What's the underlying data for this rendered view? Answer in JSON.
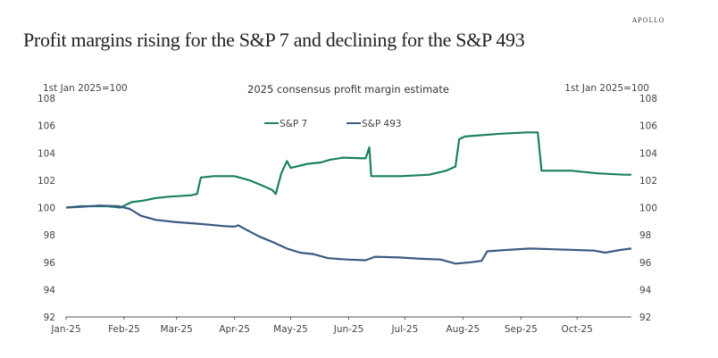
{
  "brand": "APOLLO",
  "title": "Profit margins rising for the S&P 7 and declining for the S&P 493",
  "chart_data": {
    "type": "line",
    "title": "2025 consensus profit margin estimate",
    "ylabel_left": "1st Jan 2025=100",
    "ylabel_right": "1st Jan 2025=100",
    "xlabel": "",
    "ylim": [
      92,
      108
    ],
    "yticks": [
      92,
      94,
      96,
      98,
      100,
      102,
      104,
      106,
      108
    ],
    "xlim_days": [
      0,
      302
    ],
    "xticks": [
      {
        "label": "Jan-25",
        "day": 0
      },
      {
        "label": "Feb-25",
        "day": 31
      },
      {
        "label": "Mar-25",
        "day": 59
      },
      {
        "label": "Apr-25",
        "day": 90
      },
      {
        "label": "May-25",
        "day": 120
      },
      {
        "label": "Jun-25",
        "day": 151
      },
      {
        "label": "Jul-25",
        "day": 181
      },
      {
        "label": "Aug-25",
        "day": 212
      },
      {
        "label": "Sep-25",
        "day": 243
      },
      {
        "label": "Oct-25",
        "day": 273
      }
    ],
    "legend_position": "top-center",
    "grid": false,
    "series": [
      {
        "name": "S&P 7",
        "color": "#1a8060",
        "points": [
          [
            0,
            100
          ],
          [
            8,
            100.1
          ],
          [
            22,
            100.1
          ],
          [
            29,
            100
          ],
          [
            35,
            100.4
          ],
          [
            41,
            100.5
          ],
          [
            48,
            100.7
          ],
          [
            55,
            100.8
          ],
          [
            67,
            100.9
          ],
          [
            70,
            101
          ],
          [
            72,
            102.2
          ],
          [
            79,
            102.3
          ],
          [
            90,
            102.3
          ],
          [
            98,
            102.0
          ],
          [
            105,
            101.6
          ],
          [
            110,
            101.3
          ],
          [
            112,
            101.0
          ],
          [
            115,
            102.5
          ],
          [
            118,
            103.4
          ],
          [
            120,
            102.9
          ],
          [
            129,
            103.2
          ],
          [
            136,
            103.3
          ],
          [
            141,
            103.5
          ],
          [
            148,
            103.65
          ],
          [
            160,
            103.6
          ],
          [
            162,
            104.4
          ],
          [
            163,
            102.3
          ],
          [
            179,
            102.3
          ],
          [
            194,
            102.4
          ],
          [
            203,
            102.7
          ],
          [
            208,
            103.0
          ],
          [
            210,
            105.0
          ],
          [
            213,
            105.2
          ],
          [
            232,
            105.4
          ],
          [
            246,
            105.5
          ],
          [
            252,
            105.5
          ],
          [
            254,
            102.7
          ],
          [
            270,
            102.7
          ],
          [
            284,
            102.5
          ],
          [
            298,
            102.4
          ],
          [
            302,
            102.4
          ]
        ]
      },
      {
        "name": "S&P 493",
        "color": "#3b5b82",
        "points": [
          [
            0,
            100
          ],
          [
            8,
            100.05
          ],
          [
            18,
            100.15
          ],
          [
            28,
            100.1
          ],
          [
            34,
            99.9
          ],
          [
            40,
            99.4
          ],
          [
            48,
            99.1
          ],
          [
            58,
            98.95
          ],
          [
            72,
            98.8
          ],
          [
            84,
            98.65
          ],
          [
            90,
            98.6
          ],
          [
            92,
            98.7
          ],
          [
            96,
            98.4
          ],
          [
            103,
            97.9
          ],
          [
            110,
            97.5
          ],
          [
            118,
            97.0
          ],
          [
            125,
            96.7
          ],
          [
            132,
            96.6
          ],
          [
            140,
            96.3
          ],
          [
            150,
            96.2
          ],
          [
            160,
            96.15
          ],
          [
            165,
            96.4
          ],
          [
            178,
            96.35
          ],
          [
            190,
            96.25
          ],
          [
            200,
            96.2
          ],
          [
            208,
            95.9
          ],
          [
            216,
            96.0
          ],
          [
            222,
            96.1
          ],
          [
            225,
            96.8
          ],
          [
            235,
            96.9
          ],
          [
            248,
            97.0
          ],
          [
            260,
            96.95
          ],
          [
            272,
            96.9
          ],
          [
            282,
            96.85
          ],
          [
            288,
            96.7
          ],
          [
            296,
            96.9
          ],
          [
            302,
            97.0
          ]
        ]
      }
    ]
  }
}
